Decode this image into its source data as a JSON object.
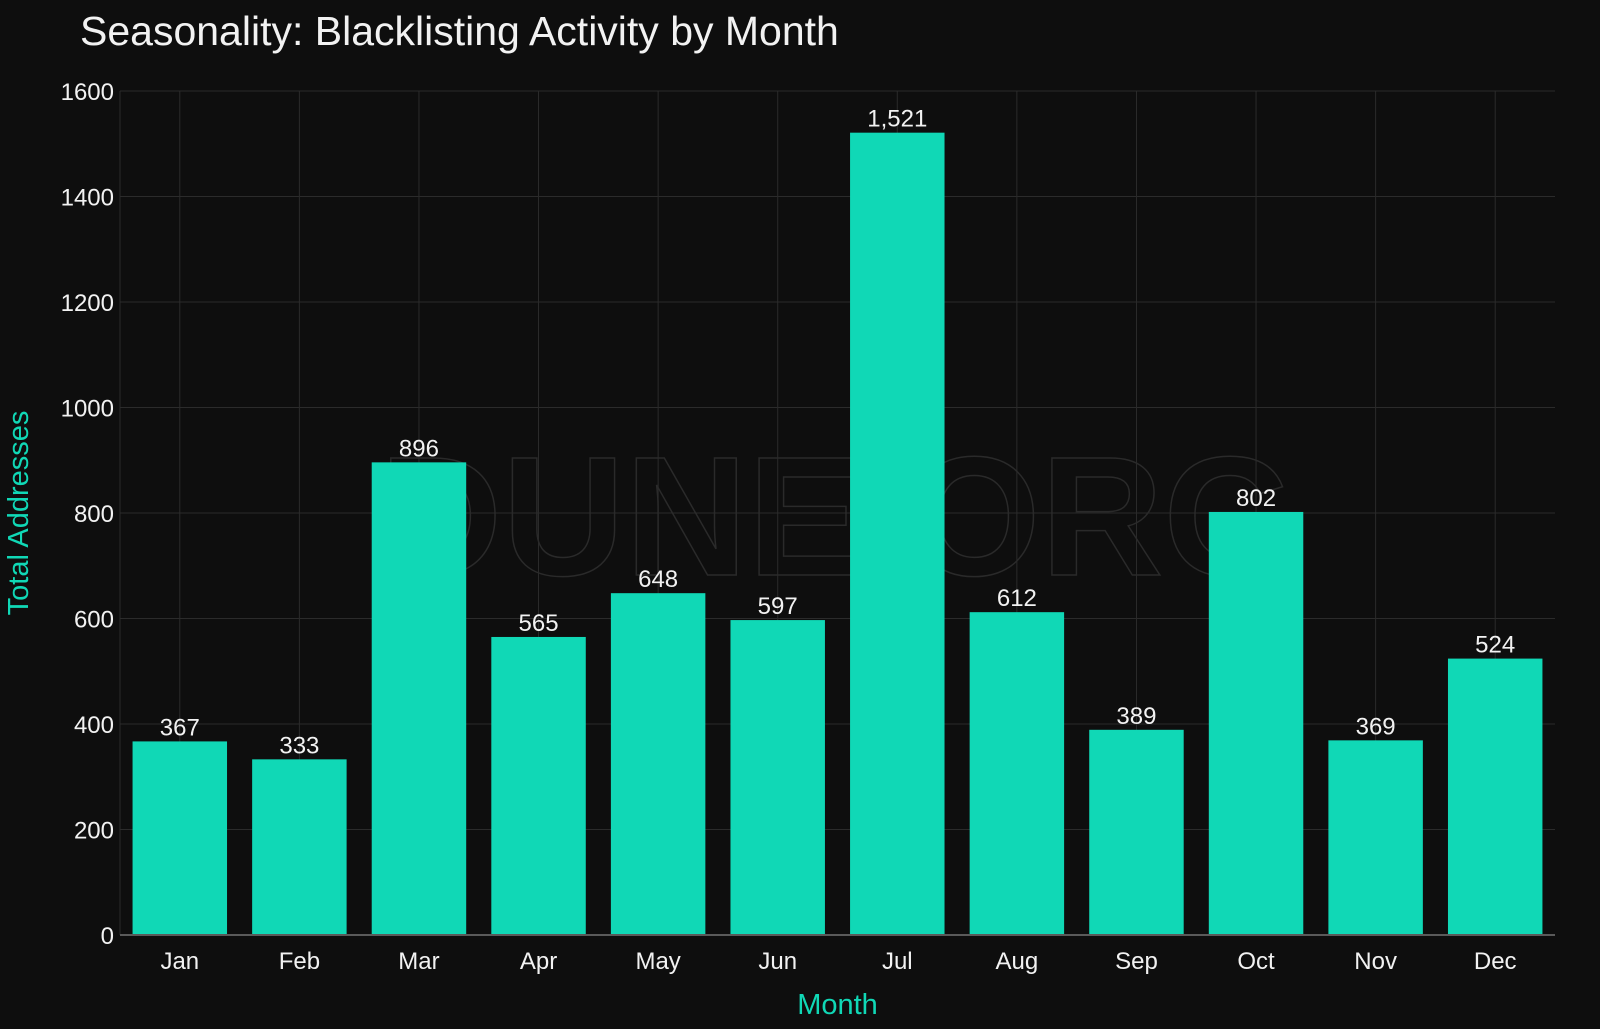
{
  "chart_data": {
    "type": "bar",
    "title": "Seasonality: Blacklisting Activity by Month",
    "xlabel": "Month",
    "ylabel": "Total Addresses",
    "categories": [
      "Jan",
      "Feb",
      "Mar",
      "Apr",
      "May",
      "Jun",
      "Jul",
      "Aug",
      "Sep",
      "Oct",
      "Nov",
      "Dec"
    ],
    "values": [
      367,
      333,
      896,
      565,
      648,
      597,
      1521,
      612,
      389,
      802,
      369,
      524
    ],
    "data_labels": [
      "367",
      "333",
      "896",
      "565",
      "648",
      "597",
      "1,521",
      "612",
      "389",
      "802",
      "369",
      "524"
    ],
    "ylim": [
      0,
      1600
    ],
    "yticks": [
      0,
      200,
      400,
      600,
      800,
      1000,
      1200,
      1400,
      1600
    ],
    "grid": true,
    "watermark": "DUNE.ORG",
    "colors": {
      "background": "#0e0e0e",
      "bar": "#10d8b6",
      "grid": "#2b2b2b",
      "axis_title": "#10d8b6",
      "text": "#f2f2f2"
    }
  }
}
